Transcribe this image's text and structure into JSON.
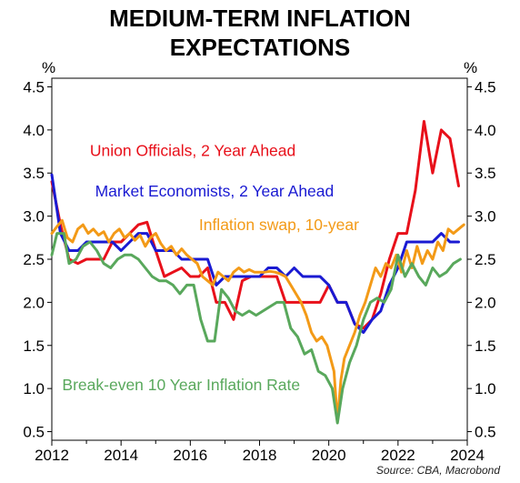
{
  "title_line1": "MEDIUM-TERM INFLATION",
  "title_line2": "EXPECTATIONS",
  "source": "Source: CBA, Macrobond",
  "chart_data": {
    "type": "line",
    "unit_left": "%",
    "unit_right": "%",
    "xlim": [
      2012.0,
      2024.0
    ],
    "ylim": [
      0.4,
      4.6
    ],
    "x_ticks": [
      "2012",
      "2014",
      "2016",
      "2018",
      "2020",
      "2022",
      "2024"
    ],
    "y_ticks": [
      "0.5",
      "1.0",
      "1.5",
      "2.0",
      "2.5",
      "3.0",
      "3.5",
      "4.0",
      "4.5"
    ],
    "grid": false,
    "series": [
      {
        "name": "Union Officials, 2 Year Ahead",
        "color": "#e8101a",
        "label_at": [
          2013.1,
          3.7
        ],
        "points": [
          [
            2012.0,
            3.4
          ],
          [
            2012.25,
            2.9
          ],
          [
            2012.5,
            2.5
          ],
          [
            2012.75,
            2.45
          ],
          [
            2013.0,
            2.5
          ],
          [
            2013.25,
            2.5
          ],
          [
            2013.5,
            2.5
          ],
          [
            2013.75,
            2.7
          ],
          [
            2014.0,
            2.7
          ],
          [
            2014.25,
            2.8
          ],
          [
            2014.5,
            2.9
          ],
          [
            2014.75,
            2.93
          ],
          [
            2015.0,
            2.6
          ],
          [
            2015.25,
            2.3
          ],
          [
            2015.5,
            2.35
          ],
          [
            2015.75,
            2.4
          ],
          [
            2016.0,
            2.3
          ],
          [
            2016.25,
            2.3
          ],
          [
            2016.5,
            2.4
          ],
          [
            2016.75,
            2.0
          ],
          [
            2017.0,
            2.0
          ],
          [
            2017.25,
            1.8
          ],
          [
            2017.5,
            2.25
          ],
          [
            2017.75,
            2.3
          ],
          [
            2018.0,
            2.3
          ],
          [
            2018.25,
            2.3
          ],
          [
            2018.5,
            2.3
          ],
          [
            2018.75,
            2.0
          ],
          [
            2019.0,
            2.0
          ],
          [
            2019.25,
            2.0
          ],
          [
            2019.5,
            2.0
          ],
          [
            2019.75,
            2.0
          ],
          [
            2020.0,
            2.2
          ],
          [
            2020.25,
            2.0
          ],
          [
            2020.5,
            2.0
          ],
          [
            2020.75,
            1.75
          ],
          [
            2021.0,
            1.7
          ],
          [
            2021.25,
            1.8
          ],
          [
            2021.5,
            2.1
          ],
          [
            2021.75,
            2.5
          ],
          [
            2022.0,
            2.8
          ],
          [
            2022.25,
            2.8
          ],
          [
            2022.5,
            3.3
          ],
          [
            2022.75,
            4.1
          ],
          [
            2023.0,
            3.5
          ],
          [
            2023.25,
            4.0
          ],
          [
            2023.5,
            3.9
          ],
          [
            2023.75,
            3.35
          ]
        ]
      },
      {
        "name": "Market Economists, 2 Year Ahead",
        "color": "#1a1ad2",
        "label_at": [
          2013.25,
          3.23
        ],
        "points": [
          [
            2012.0,
            3.48
          ],
          [
            2012.25,
            2.8
          ],
          [
            2012.5,
            2.6
          ],
          [
            2012.75,
            2.6
          ],
          [
            2013.0,
            2.7
          ],
          [
            2013.25,
            2.7
          ],
          [
            2013.5,
            2.7
          ],
          [
            2013.75,
            2.7
          ],
          [
            2014.0,
            2.6
          ],
          [
            2014.25,
            2.7
          ],
          [
            2014.5,
            2.8
          ],
          [
            2014.75,
            2.8
          ],
          [
            2015.0,
            2.6
          ],
          [
            2015.25,
            2.6
          ],
          [
            2015.5,
            2.6
          ],
          [
            2015.75,
            2.5
          ],
          [
            2016.0,
            2.5
          ],
          [
            2016.25,
            2.5
          ],
          [
            2016.5,
            2.5
          ],
          [
            2016.75,
            2.2
          ],
          [
            2017.0,
            2.3
          ],
          [
            2017.25,
            2.3
          ],
          [
            2017.5,
            2.3
          ],
          [
            2017.75,
            2.3
          ],
          [
            2018.0,
            2.3
          ],
          [
            2018.25,
            2.4
          ],
          [
            2018.5,
            2.4
          ],
          [
            2018.75,
            2.3
          ],
          [
            2019.0,
            2.4
          ],
          [
            2019.25,
            2.3
          ],
          [
            2019.5,
            2.3
          ],
          [
            2019.75,
            2.3
          ],
          [
            2020.0,
            2.2
          ],
          [
            2020.25,
            2.0
          ],
          [
            2020.5,
            2.0
          ],
          [
            2020.75,
            1.75
          ],
          [
            2021.0,
            1.65
          ],
          [
            2021.25,
            1.8
          ],
          [
            2021.5,
            1.9
          ],
          [
            2021.75,
            2.2
          ],
          [
            2022.0,
            2.4
          ],
          [
            2022.25,
            2.7
          ],
          [
            2022.5,
            2.7
          ],
          [
            2022.75,
            2.7
          ],
          [
            2023.0,
            2.7
          ],
          [
            2023.25,
            2.8
          ],
          [
            2023.5,
            2.7
          ],
          [
            2023.75,
            2.7
          ]
        ]
      },
      {
        "name": "Inflation swap, 10-year",
        "color": "#f39a17",
        "label_at": [
          2016.25,
          2.84
        ],
        "points": [
          [
            2012.0,
            2.8
          ],
          [
            2012.15,
            2.88
          ],
          [
            2012.3,
            2.95
          ],
          [
            2012.45,
            2.75
          ],
          [
            2012.6,
            2.7
          ],
          [
            2012.75,
            2.85
          ],
          [
            2012.9,
            2.9
          ],
          [
            2013.05,
            2.8
          ],
          [
            2013.2,
            2.85
          ],
          [
            2013.35,
            2.78
          ],
          [
            2013.5,
            2.82
          ],
          [
            2013.65,
            2.7
          ],
          [
            2013.8,
            2.8
          ],
          [
            2013.95,
            2.85
          ],
          [
            2014.1,
            2.75
          ],
          [
            2014.25,
            2.8
          ],
          [
            2014.4,
            2.72
          ],
          [
            2014.55,
            2.78
          ],
          [
            2014.7,
            2.65
          ],
          [
            2014.85,
            2.75
          ],
          [
            2015.0,
            2.8
          ],
          [
            2015.15,
            2.68
          ],
          [
            2015.3,
            2.6
          ],
          [
            2015.45,
            2.65
          ],
          [
            2015.6,
            2.55
          ],
          [
            2015.75,
            2.62
          ],
          [
            2015.9,
            2.55
          ],
          [
            2016.05,
            2.5
          ],
          [
            2016.2,
            2.45
          ],
          [
            2016.35,
            2.3
          ],
          [
            2016.5,
            2.25
          ],
          [
            2016.65,
            2.2
          ],
          [
            2016.8,
            2.35
          ],
          [
            2016.95,
            2.3
          ],
          [
            2017.1,
            2.25
          ],
          [
            2017.25,
            2.35
          ],
          [
            2017.4,
            2.4
          ],
          [
            2017.55,
            2.35
          ],
          [
            2017.7,
            2.38
          ],
          [
            2017.85,
            2.35
          ],
          [
            2018.0,
            2.35
          ],
          [
            2018.15,
            2.35
          ],
          [
            2018.3,
            2.36
          ],
          [
            2018.45,
            2.35
          ],
          [
            2018.6,
            2.33
          ],
          [
            2018.75,
            2.3
          ],
          [
            2018.9,
            2.2
          ],
          [
            2019.05,
            2.1
          ],
          [
            2019.2,
            2.0
          ],
          [
            2019.35,
            1.85
          ],
          [
            2019.5,
            1.65
          ],
          [
            2019.65,
            1.55
          ],
          [
            2019.8,
            1.6
          ],
          [
            2019.95,
            1.5
          ],
          [
            2020.05,
            1.35
          ],
          [
            2020.15,
            1.2
          ],
          [
            2020.25,
            0.62
          ],
          [
            2020.35,
            1.1
          ],
          [
            2020.45,
            1.35
          ],
          [
            2020.6,
            1.5
          ],
          [
            2020.75,
            1.65
          ],
          [
            2020.9,
            1.85
          ],
          [
            2021.05,
            2.0
          ],
          [
            2021.2,
            2.2
          ],
          [
            2021.35,
            2.4
          ],
          [
            2021.5,
            2.3
          ],
          [
            2021.65,
            2.45
          ],
          [
            2021.8,
            2.4
          ],
          [
            2021.95,
            2.55
          ],
          [
            2022.1,
            2.35
          ],
          [
            2022.25,
            2.6
          ],
          [
            2022.4,
            2.4
          ],
          [
            2022.55,
            2.65
          ],
          [
            2022.7,
            2.45
          ],
          [
            2022.85,
            2.6
          ],
          [
            2023.0,
            2.5
          ],
          [
            2023.15,
            2.7
          ],
          [
            2023.3,
            2.6
          ],
          [
            2023.45,
            2.85
          ],
          [
            2023.6,
            2.8
          ],
          [
            2023.75,
            2.85
          ],
          [
            2023.9,
            2.9
          ]
        ]
      },
      {
        "name": "Break-even 10 Year Inflation Rate",
        "color": "#59a85c",
        "label_at": [
          2012.3,
          0.98
        ],
        "points": [
          [
            2012.0,
            2.55
          ],
          [
            2012.15,
            2.8
          ],
          [
            2012.35,
            2.8
          ],
          [
            2012.5,
            2.45
          ],
          [
            2012.7,
            2.5
          ],
          [
            2012.9,
            2.65
          ],
          [
            2013.1,
            2.7
          ],
          [
            2013.3,
            2.6
          ],
          [
            2013.5,
            2.45
          ],
          [
            2013.7,
            2.4
          ],
          [
            2013.9,
            2.5
          ],
          [
            2014.1,
            2.55
          ],
          [
            2014.3,
            2.55
          ],
          [
            2014.5,
            2.5
          ],
          [
            2014.7,
            2.4
          ],
          [
            2014.9,
            2.3
          ],
          [
            2015.1,
            2.25
          ],
          [
            2015.3,
            2.25
          ],
          [
            2015.5,
            2.2
          ],
          [
            2015.7,
            2.1
          ],
          [
            2015.9,
            2.2
          ],
          [
            2016.1,
            2.2
          ],
          [
            2016.3,
            1.8
          ],
          [
            2016.5,
            1.55
          ],
          [
            2016.7,
            1.55
          ],
          [
            2016.9,
            2.15
          ],
          [
            2017.1,
            2.05
          ],
          [
            2017.3,
            1.9
          ],
          [
            2017.5,
            1.85
          ],
          [
            2017.7,
            1.9
          ],
          [
            2017.9,
            1.85
          ],
          [
            2018.1,
            1.9
          ],
          [
            2018.3,
            1.95
          ],
          [
            2018.5,
            2.0
          ],
          [
            2018.7,
            2.0
          ],
          [
            2018.9,
            1.7
          ],
          [
            2019.1,
            1.6
          ],
          [
            2019.3,
            1.4
          ],
          [
            2019.5,
            1.45
          ],
          [
            2019.7,
            1.2
          ],
          [
            2019.9,
            1.15
          ],
          [
            2020.1,
            1.0
          ],
          [
            2020.25,
            0.6
          ],
          [
            2020.4,
            1.0
          ],
          [
            2020.6,
            1.3
          ],
          [
            2020.8,
            1.5
          ],
          [
            2021.0,
            1.8
          ],
          [
            2021.2,
            2.0
          ],
          [
            2021.4,
            2.05
          ],
          [
            2021.6,
            2.0
          ],
          [
            2021.8,
            2.15
          ],
          [
            2022.0,
            2.55
          ],
          [
            2022.2,
            2.3
          ],
          [
            2022.4,
            2.45
          ],
          [
            2022.6,
            2.3
          ],
          [
            2022.8,
            2.2
          ],
          [
            2023.0,
            2.4
          ],
          [
            2023.2,
            2.3
          ],
          [
            2023.4,
            2.35
          ],
          [
            2023.6,
            2.45
          ],
          [
            2023.8,
            2.5
          ]
        ]
      }
    ]
  }
}
